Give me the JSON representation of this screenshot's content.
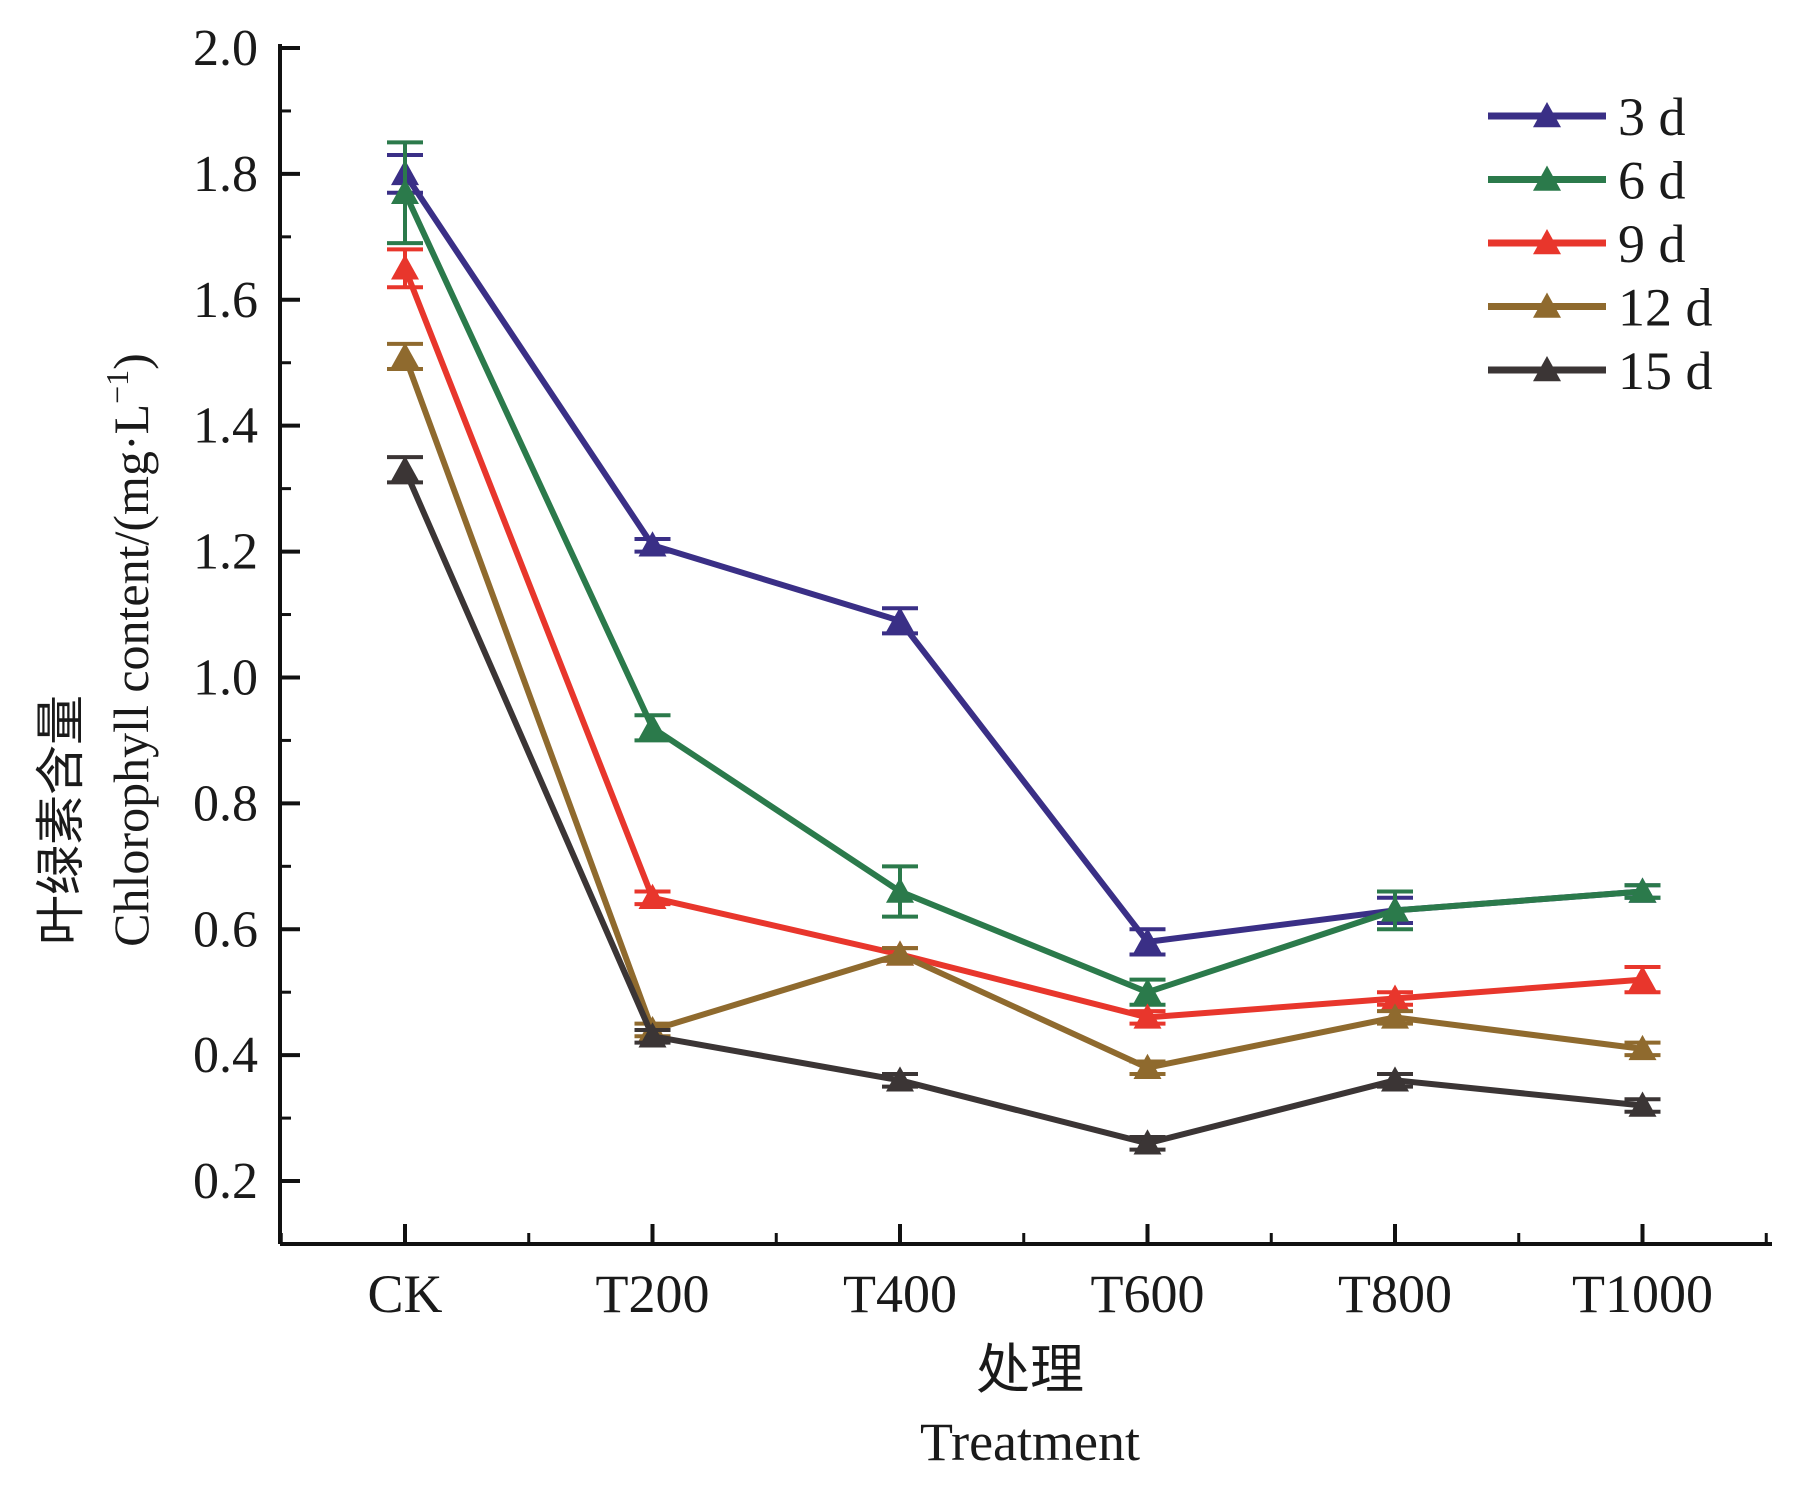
{
  "chart_data": {
    "type": "line",
    "xlabel_cn": "处理",
    "xlabel_en": "Treatment",
    "ylabel_cn": "叶绿素含量",
    "ylabel_en": "Chlorophyll content/(mg·L",
    "ylabel_sup": "−1",
    "ylabel_close": ")",
    "categories": [
      "CK",
      "T200",
      "T400",
      "T600",
      "T800",
      "T1000"
    ],
    "ylim": [
      0.1,
      2.0
    ],
    "yticks": [
      0.2,
      0.4,
      0.6,
      0.8,
      1.0,
      1.2,
      1.4,
      1.6,
      1.8,
      2.0
    ],
    "ytick_labels": [
      "0.2",
      "0.4",
      "0.6",
      "0.8",
      "1.0",
      "1.2",
      "1.4",
      "1.6",
      "1.8",
      "2.0"
    ],
    "legend_position": "top-right",
    "grid": false,
    "series": [
      {
        "name": "3 d",
        "color": "#3a2f86",
        "values": [
          1.8,
          1.21,
          1.09,
          0.58,
          0.63,
          0.66
        ],
        "errors": [
          0.03,
          0.01,
          0.02,
          0.02,
          0.02,
          0.01
        ]
      },
      {
        "name": "6 d",
        "color": "#2b7a4b",
        "values": [
          1.77,
          0.92,
          0.66,
          0.5,
          0.63,
          0.66
        ],
        "errors": [
          0.08,
          0.02,
          0.04,
          0.02,
          0.03,
          0.01
        ]
      },
      {
        "name": "9 d",
        "color": "#e8362c",
        "values": [
          1.65,
          0.65,
          0.56,
          0.46,
          0.49,
          0.52
        ],
        "errors": [
          0.03,
          0.01,
          0.01,
          0.01,
          0.01,
          0.02
        ]
      },
      {
        "name": "12 d",
        "color": "#8f6a2e",
        "values": [
          1.51,
          0.44,
          0.56,
          0.38,
          0.46,
          0.41
        ],
        "errors": [
          0.02,
          0.01,
          0.01,
          0.01,
          0.01,
          0.01
        ]
      },
      {
        "name": "15 d",
        "color": "#3b3535",
        "values": [
          1.33,
          0.43,
          0.36,
          0.26,
          0.36,
          0.32
        ],
        "errors": [
          0.02,
          0.01,
          0.01,
          0.01,
          0.01,
          0.01
        ]
      }
    ]
  }
}
